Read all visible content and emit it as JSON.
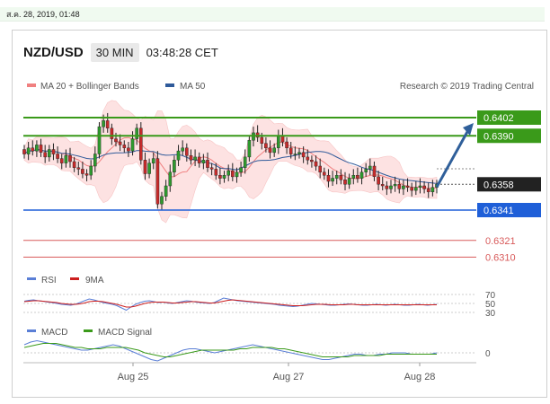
{
  "timestamp": "ส.ค. 28, 2019, 01:48",
  "header": {
    "pair": "NZD/USD",
    "timeframe": "30 MIN",
    "time": "03:48:28 CET"
  },
  "legend": {
    "ma20": {
      "label": "MA 20 + Bollinger Bands",
      "color": "#f08080"
    },
    "ma50": {
      "label": "MA 50",
      "color": "#2f5a9a"
    },
    "credit": "Research © 2019 Trading Central"
  },
  "chart_data": {
    "type": "candlestick",
    "x_ticks": [
      "Aug 25",
      "Aug 27",
      "Aug 28"
    ],
    "ylim": [
      0.63,
      0.641
    ],
    "levels": [
      {
        "value": "0.6402",
        "kind": "resistance",
        "color": "#3a9a1a"
      },
      {
        "value": "0.6390",
        "kind": "resistance",
        "color": "#3a9a1a"
      },
      {
        "value": "0.6358",
        "kind": "current",
        "color": "#222222"
      },
      {
        "value": "0.6341",
        "kind": "support",
        "color": "#1f5fd8"
      },
      {
        "value": "0.6321",
        "kind": "support",
        "color": "#d85a5a"
      },
      {
        "value": "0.6310",
        "kind": "support",
        "color": "#d85a5a"
      }
    ],
    "projection": {
      "from": 0.6358,
      "to": 0.6402,
      "color": "#2f5f9a"
    },
    "closes": [
      0.6378,
      0.6382,
      0.638,
      0.6384,
      0.6379,
      0.6376,
      0.6381,
      0.6378,
      0.6375,
      0.6372,
      0.6377,
      0.6373,
      0.6369,
      0.6368,
      0.6365,
      0.6364,
      0.637,
      0.6378,
      0.6396,
      0.64,
      0.6395,
      0.6388,
      0.6386,
      0.6384,
      0.6382,
      0.638,
      0.6388,
      0.6395,
      0.6374,
      0.6365,
      0.6372,
      0.6375,
      0.6345,
      0.635,
      0.6357,
      0.6366,
      0.6374,
      0.638,
      0.6382,
      0.6377,
      0.6374,
      0.6376,
      0.6372,
      0.6374,
      0.6369,
      0.6368,
      0.6364,
      0.6362,
      0.6364,
      0.6367,
      0.6363,
      0.6366,
      0.6369,
      0.6376,
      0.6387,
      0.6392,
      0.6389,
      0.6385,
      0.6382,
      0.6379,
      0.6382,
      0.639,
      0.6386,
      0.6382,
      0.6378,
      0.6378,
      0.6379,
      0.6376,
      0.6374,
      0.6373,
      0.637,
      0.6366,
      0.6364,
      0.636,
      0.6362,
      0.6364,
      0.6361,
      0.6358,
      0.6362,
      0.6364,
      0.6362,
      0.6366,
      0.6368,
      0.637,
      0.6363,
      0.6358,
      0.6357,
      0.6355,
      0.6357,
      0.6358,
      0.6355,
      0.6357,
      0.6356,
      0.6354,
      0.6356,
      0.6357,
      0.6355,
      0.6353,
      0.6356,
      0.6358
    ],
    "rsi": {
      "labels": {
        "rsi": "RSI",
        "ma": "9MA"
      },
      "colors": {
        "rsi": "#5b7fd6",
        "ma": "#cc1f1f"
      },
      "levels": [
        "70",
        "50",
        "30"
      ],
      "rsi_values": [
        55,
        57,
        58,
        56,
        55,
        53,
        52,
        50,
        48,
        47,
        46,
        48,
        52,
        56,
        60,
        58,
        55,
        52,
        50,
        48,
        45,
        40,
        35,
        42,
        48,
        52,
        55,
        56,
        54,
        52,
        53,
        51,
        50,
        52,
        54,
        56,
        55,
        53,
        52,
        51,
        50,
        52,
        57,
        62,
        60,
        58,
        56,
        55,
        54,
        53,
        52,
        51,
        50,
        49,
        48,
        46,
        45,
        44,
        43,
        44,
        46,
        48,
        50,
        49,
        48,
        47,
        46,
        46,
        47,
        48,
        49,
        48,
        47,
        46,
        46,
        47,
        48,
        47,
        46,
        47,
        48,
        47,
        46,
        46,
        47,
        48,
        47,
        46,
        47,
        48
      ],
      "ma_values": [
        54,
        55,
        56,
        56,
        55,
        54,
        53,
        52,
        50,
        49,
        48,
        48,
        49,
        51,
        54,
        55,
        55,
        54,
        52,
        50,
        48,
        45,
        42,
        42,
        44,
        47,
        50,
        52,
        53,
        53,
        53,
        52,
        51,
        51,
        52,
        53,
        54,
        54,
        53,
        52,
        51,
        51,
        53,
        55,
        57,
        58,
        57,
        56,
        55,
        54,
        53,
        52,
        51,
        50,
        49,
        48,
        47,
        46,
        45,
        45,
        45,
        46,
        47,
        48,
        48,
        48,
        47,
        47,
        47,
        47,
        48,
        48,
        47,
        47,
        47,
        47,
        47,
        47,
        47,
        47,
        47,
        47,
        47,
        47,
        47,
        47,
        47,
        47,
        47,
        47
      ]
    },
    "macd": {
      "labels": {
        "macd": "MACD",
        "signal": "MACD Signal"
      },
      "colors": {
        "macd": "#5b7fd6",
        "signal": "#3a9a1a"
      },
      "level": "0",
      "macd_values": [
        6,
        8,
        9,
        8,
        7,
        6,
        5,
        4,
        3,
        2,
        2,
        3,
        4,
        5,
        6,
        5,
        3,
        1,
        -1,
        -3,
        -5,
        -6,
        -4,
        -2,
        0,
        2,
        3,
        3,
        2,
        1,
        0,
        1,
        2,
        3,
        4,
        5,
        6,
        5,
        4,
        3,
        2,
        1,
        0,
        -1,
        -2,
        -3,
        -4,
        -5,
        -5,
        -4,
        -3,
        -2,
        -1,
        -1,
        -2,
        -2,
        -1,
        -1,
        0,
        0,
        0,
        -1,
        -1,
        -1,
        -1,
        0
      ],
      "signal_values": [
        4,
        5,
        6,
        7,
        7,
        7,
        6,
        5,
        4,
        4,
        3,
        3,
        3,
        4,
        4,
        4,
        4,
        3,
        2,
        0,
        -1,
        -2,
        -3,
        -3,
        -2,
        -1,
        0,
        1,
        2,
        2,
        2,
        2,
        2,
        2,
        3,
        3,
        4,
        4,
        4,
        4,
        3,
        3,
        2,
        1,
        0,
        -1,
        -2,
        -3,
        -3,
        -3,
        -3,
        -3,
        -2,
        -2,
        -2,
        -2,
        -2,
        -1,
        -1,
        -1,
        -1,
        -1,
        -1,
        -1,
        -1,
        -1
      ]
    }
  }
}
